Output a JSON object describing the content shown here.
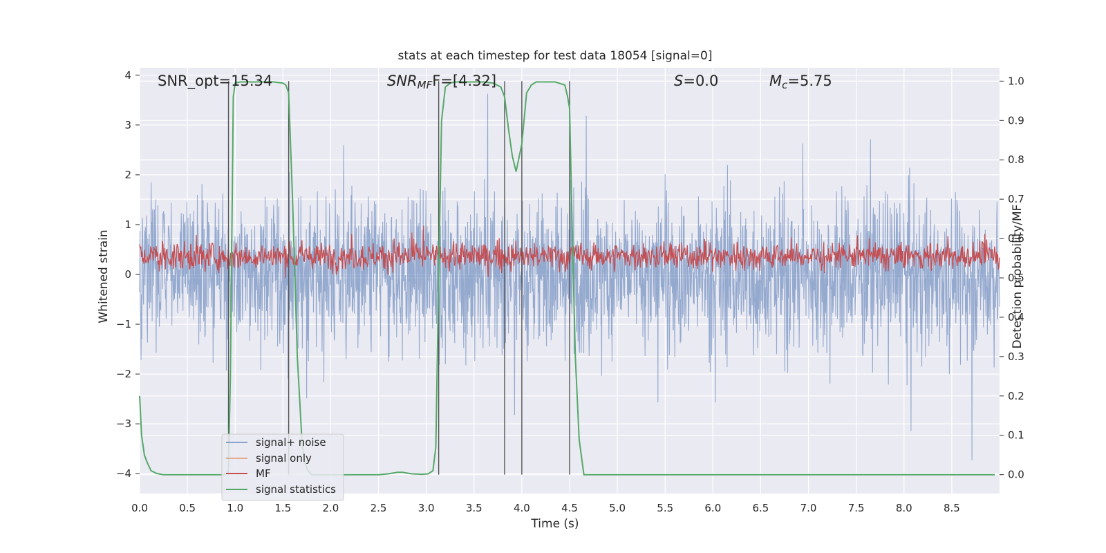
{
  "chart_data": {
    "type": "line",
    "title": "stats at each timestep for test data 18054 [signal=0]",
    "xlabel": "Time (s)",
    "ylabel": "Whitened strain",
    "y2label": "Detection probability/MF",
    "xlim": [
      0.0,
      9.0
    ],
    "ylim": [
      -4.4,
      4.15
    ],
    "y2lim": [
      -0.048,
      1.034
    ],
    "x_ticks": [
      "0.0",
      "0.5",
      "1.0",
      "1.5",
      "2.0",
      "2.5",
      "3.0",
      "3.5",
      "4.0",
      "4.5",
      "5.0",
      "5.5",
      "6.0",
      "6.5",
      "7.0",
      "7.5",
      "8.0",
      "8.5"
    ],
    "y_ticks": [
      "4",
      "3",
      "2",
      "1",
      "0",
      "−1",
      "−2",
      "−3",
      "−4"
    ],
    "y2_ticks": [
      "1.0",
      "0.9",
      "0.8",
      "0.7",
      "0.6",
      "0.5",
      "0.4",
      "0.3",
      "0.2",
      "0.1",
      "0.0"
    ],
    "annotations": {
      "snr_opt": "SNR_opt=15.34",
      "snr_mf_main": "SNR",
      "snr_mf_sub": "MF",
      "snr_mf_value": "F=[4.32]",
      "s_symbol": "S",
      "s_value": "=0.0",
      "mc_symbol": "M",
      "mc_sub": "c",
      "mc_value": "=5.75"
    },
    "vertical_lines_x": [
      0.93,
      1.56,
      3.13,
      3.82,
      4.0,
      4.5
    ],
    "series": [
      {
        "name": "signal+ noise",
        "color": "#4c72b0",
        "alpha": 0.5,
        "axis": "left",
        "amplitude_range": [
          -3.9,
          3.7
        ],
        "description": "dense noise"
      },
      {
        "name": "signal only",
        "color": "#dd8452",
        "alpha": 0.5,
        "axis": "left",
        "values": []
      },
      {
        "name": "MF",
        "color": "#c44e52",
        "axis": "right",
        "range": [
          0.51,
          0.6
        ]
      },
      {
        "name": "signal statistics",
        "color": "#55a868",
        "axis": "right",
        "x": [
          0.0,
          0.02,
          0.05,
          0.08,
          0.12,
          0.18,
          0.25,
          0.4,
          0.6,
          0.8,
          0.9,
          0.93,
          0.95,
          0.98,
          1.0,
          1.05,
          1.1,
          1.2,
          1.3,
          1.4,
          1.5,
          1.53,
          1.56,
          1.6,
          1.65,
          1.7,
          1.73,
          1.76,
          1.8,
          2.0,
          2.3,
          2.5,
          2.6,
          2.7,
          2.75,
          2.85,
          2.95,
          3.02,
          3.07,
          3.1,
          3.13,
          3.16,
          3.2,
          3.25,
          3.3,
          3.4,
          3.5,
          3.6,
          3.7,
          3.78,
          3.82,
          3.86,
          3.9,
          3.94,
          4.0,
          4.05,
          4.1,
          4.15,
          4.25,
          4.35,
          4.45,
          4.48,
          4.5,
          4.53,
          4.56,
          4.6,
          4.65,
          4.8,
          5.5,
          6.5,
          7.5,
          8.5,
          8.95
        ],
        "y": [
          0.2,
          0.1,
          0.05,
          0.03,
          0.01,
          0.003,
          0.0,
          0.0,
          0.0,
          0.0,
          0.0,
          0.01,
          0.25,
          0.96,
          0.995,
          0.998,
          0.998,
          0.998,
          0.998,
          0.998,
          0.995,
          0.99,
          0.97,
          0.7,
          0.3,
          0.08,
          0.03,
          0.01,
          0.0,
          0.0,
          0.0,
          0.0,
          0.002,
          0.006,
          0.006,
          0.002,
          0.001,
          0.002,
          0.01,
          0.07,
          0.5,
          0.9,
          0.985,
          0.995,
          0.998,
          0.998,
          0.998,
          0.998,
          0.995,
          0.985,
          0.96,
          0.88,
          0.81,
          0.77,
          0.84,
          0.97,
          0.99,
          0.998,
          0.998,
          0.998,
          0.99,
          0.96,
          0.93,
          0.6,
          0.3,
          0.09,
          0.0,
          0.0,
          0.0,
          0.0,
          0.0,
          0.0,
          0.0
        ]
      }
    ],
    "legend_position": "lower-left"
  }
}
